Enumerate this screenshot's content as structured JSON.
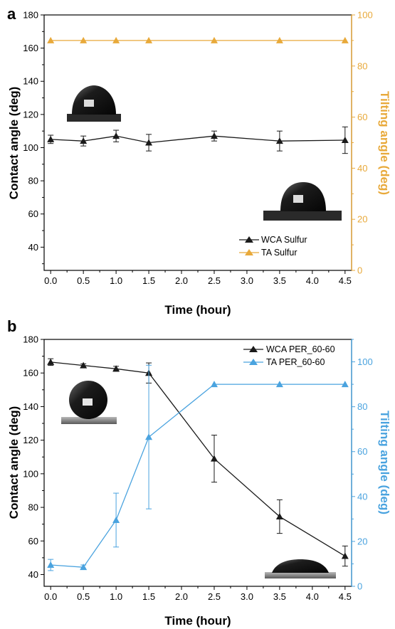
{
  "colors": {
    "wca": "#1a1a1a",
    "ta_a": "#e8a93a",
    "ta_b": "#4aa3df"
  },
  "chart_data": [
    {
      "type": "line",
      "panel_label": "a",
      "xlabel": "Time (hour)",
      "ylabel": "Contact angle (deg)",
      "y2label": "Tilting angle (deg)",
      "xlim": [
        -0.1,
        4.6
      ],
      "ylim": [
        26,
        180
      ],
      "y2lim": [
        0,
        100
      ],
      "xticks": [
        "0.0",
        "0.5",
        "1.0",
        "1.5",
        "2.0",
        "2.5",
        "3.0",
        "3.5",
        "4.0",
        "4.5"
      ],
      "yticks": [
        "40",
        "60",
        "80",
        "100",
        "120",
        "140",
        "160",
        "180"
      ],
      "y2ticks": [
        "0",
        "20",
        "40",
        "60",
        "80",
        "100"
      ],
      "legend_position": "bottom-center",
      "series": [
        {
          "name": "WCA Sulfur",
          "axis": "left",
          "marker": "triangle",
          "x": [
            0,
            0.5,
            1.0,
            1.5,
            2.5,
            3.5,
            4.5
          ],
          "y": [
            105,
            104,
            107,
            103,
            107,
            104,
            104.5
          ],
          "err": [
            2.5,
            3,
            3.5,
            5,
            3,
            6,
            8
          ]
        },
        {
          "name": "TA Sulfur",
          "axis": "right",
          "marker": "triangle",
          "x": [
            0,
            0.5,
            1.0,
            1.5,
            2.5,
            3.5,
            4.5
          ],
          "y": [
            90,
            90,
            90,
            90,
            90,
            90,
            90
          ],
          "err": [
            0,
            0,
            0,
            0,
            0,
            0,
            0
          ]
        }
      ]
    },
    {
      "type": "line",
      "panel_label": "b",
      "xlabel": "Time (hour)",
      "ylabel": "Contact angle (deg)",
      "y2label": "Tilting angle (deg)",
      "xlim": [
        -0.1,
        4.6
      ],
      "ylim": [
        33,
        180
      ],
      "y2lim": [
        0,
        110
      ],
      "xticks": [
        "0.0",
        "0.5",
        "1.0",
        "1.5",
        "2.0",
        "2.5",
        "3.0",
        "3.5",
        "4.0",
        "4.5"
      ],
      "yticks": [
        "40",
        "60",
        "80",
        "100",
        "120",
        "140",
        "160",
        "180"
      ],
      "y2ticks": [
        "0",
        "20",
        "40",
        "60",
        "80",
        "100"
      ],
      "legend_position": "top-right",
      "series": [
        {
          "name": "WCA PER_60-60",
          "axis": "left",
          "marker": "triangle",
          "x": [
            0,
            0.5,
            1.0,
            1.5,
            2.5,
            3.5,
            4.5
          ],
          "y": [
            166.5,
            164.5,
            162.5,
            160,
            109,
            74.5,
            51
          ],
          "err": [
            2,
            1,
            1.5,
            6,
            14,
            10,
            6
          ]
        },
        {
          "name": "TA PER_60-60",
          "axis": "right",
          "marker": "triangle",
          "x": [
            0,
            0.5,
            1.0,
            1.5,
            2.5,
            3.5,
            4.5
          ],
          "y": [
            9.5,
            8.5,
            29.5,
            66.5,
            90,
            90,
            90
          ],
          "err": [
            2.5,
            1,
            12,
            32,
            0,
            0,
            0
          ]
        }
      ]
    }
  ]
}
